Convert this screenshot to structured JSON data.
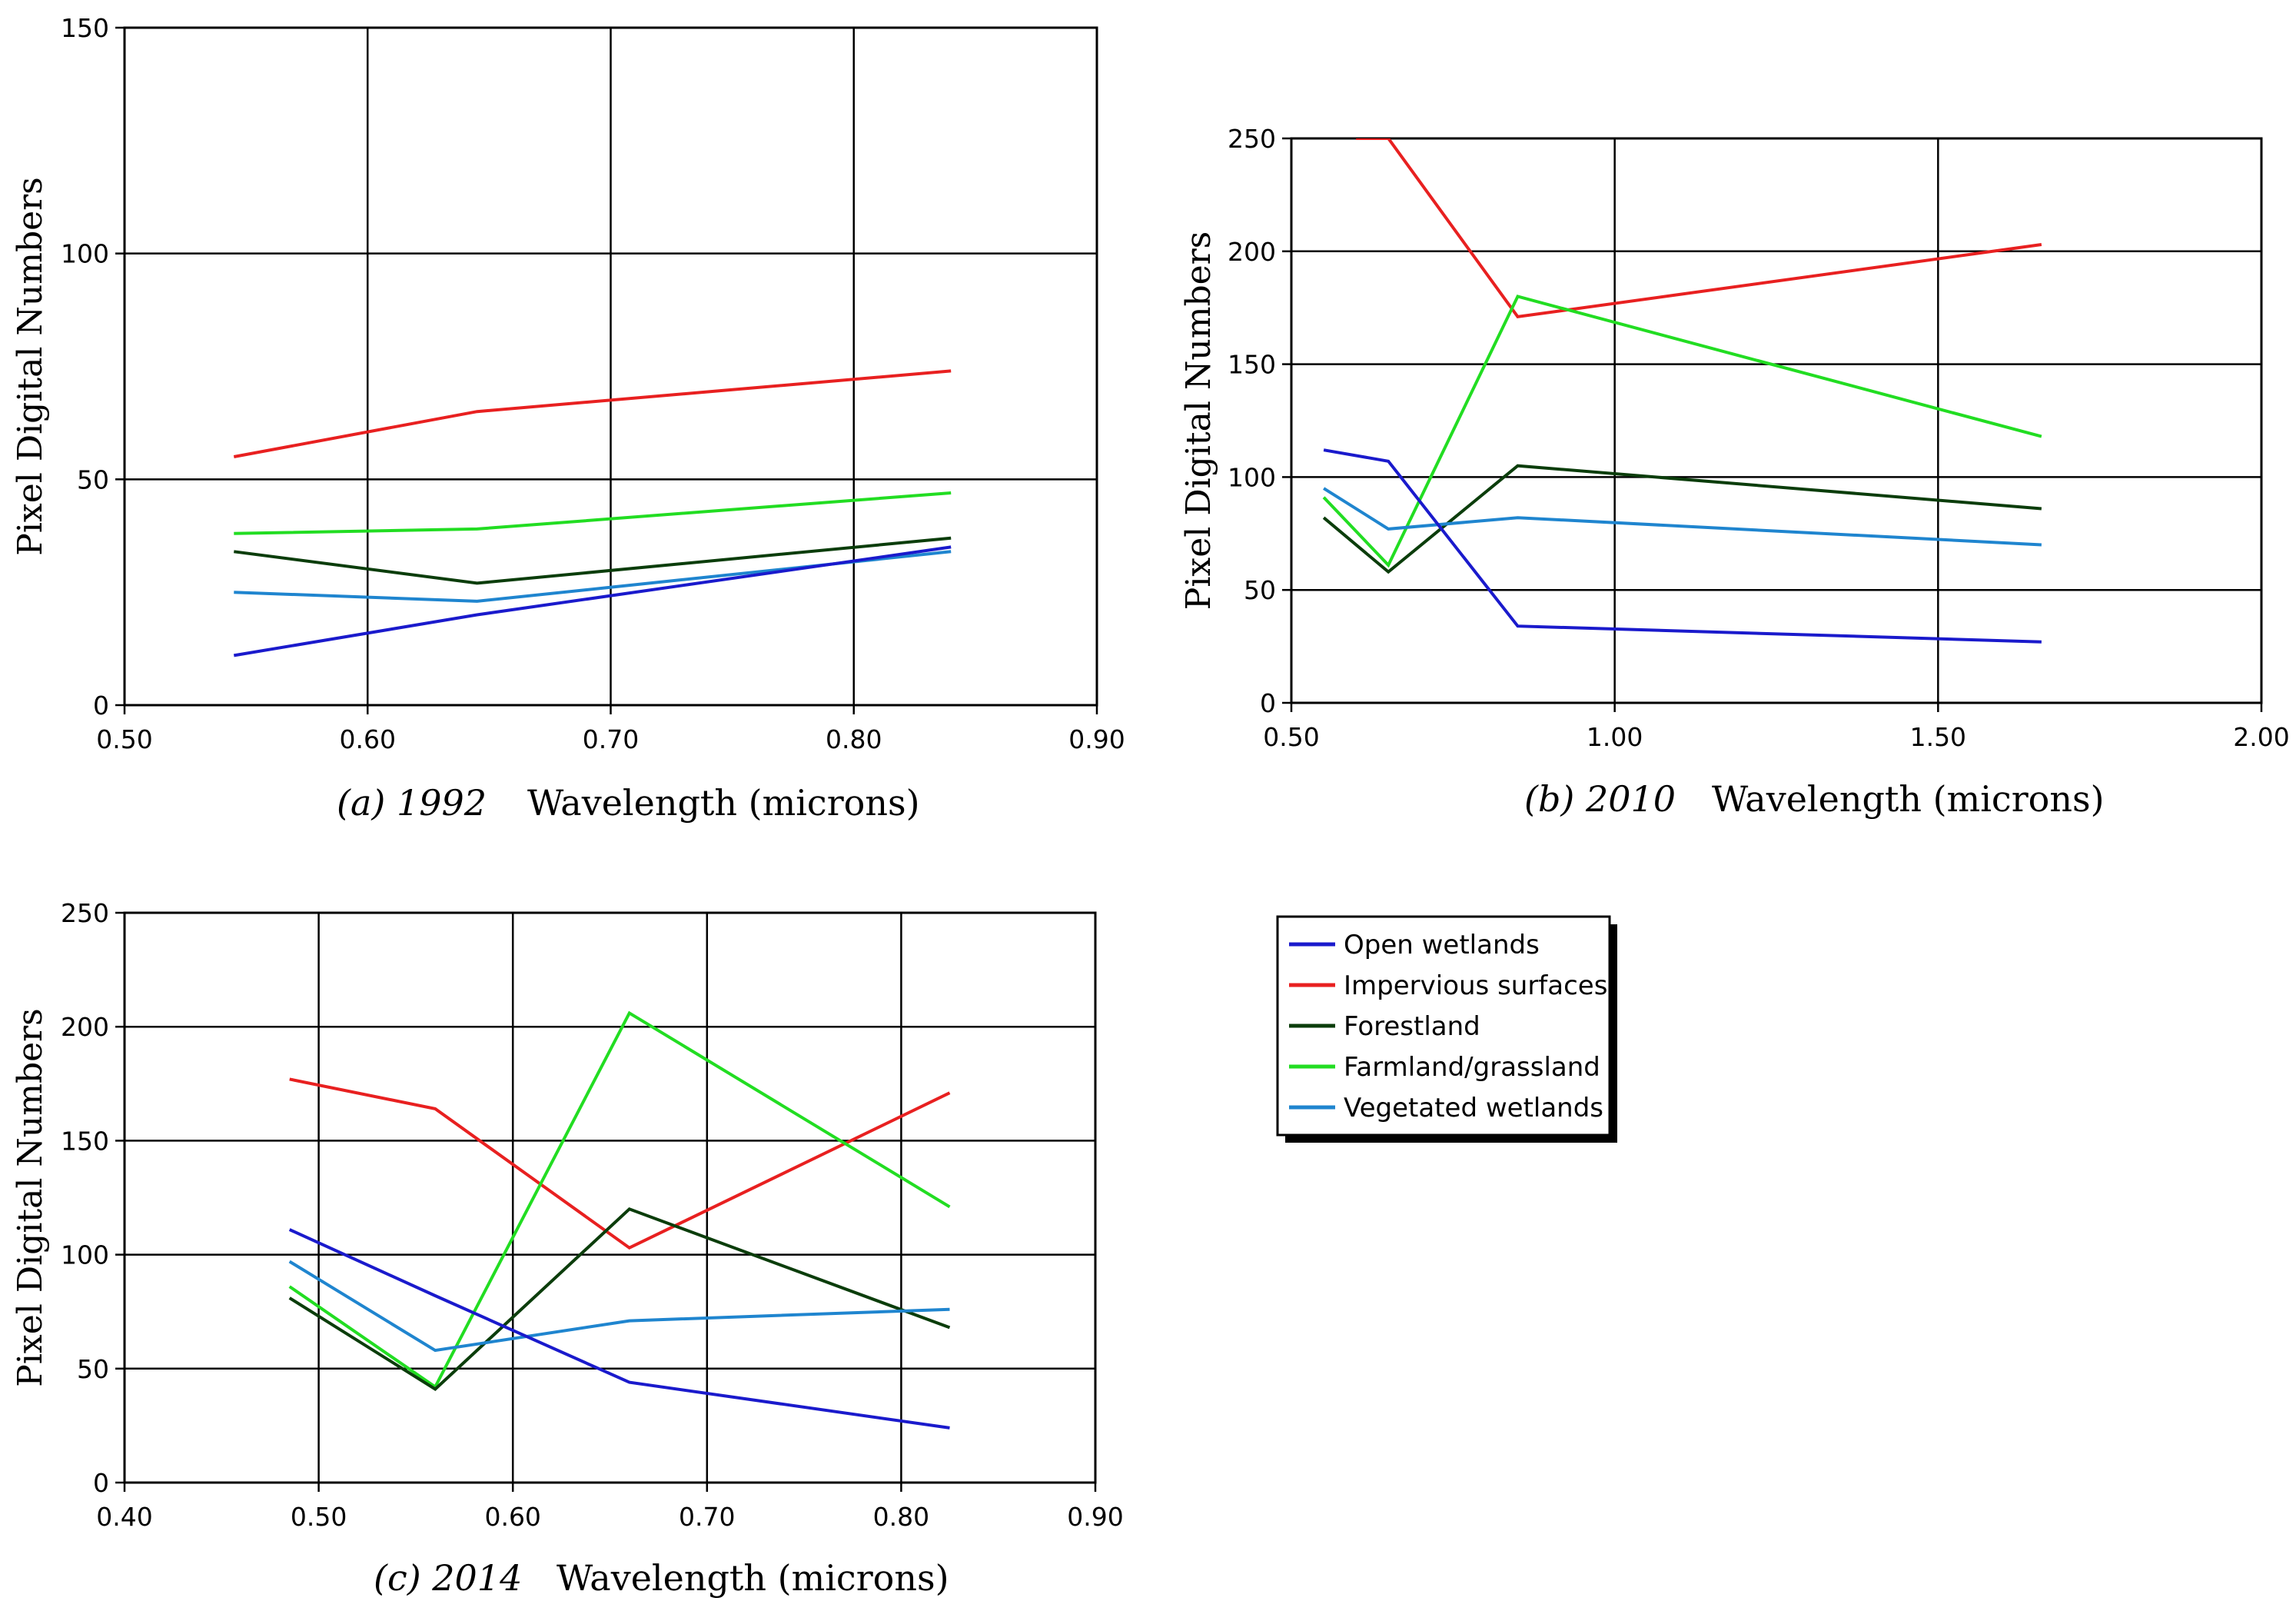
{
  "colors": {
    "open_wetlands": "#1a1acc",
    "impervious": "#e82020",
    "forest": "#0b3d0b",
    "farmland": "#22dd22",
    "veg_wetlands": "#1f85cf",
    "grid": "#000000"
  },
  "legend": {
    "items": [
      {
        "label": "Open wetlands",
        "color": "#1a1acc"
      },
      {
        "label": "Impervious surfaces",
        "color": "#e82020"
      },
      {
        "label": "Forestland",
        "color": "#0b3d0b"
      },
      {
        "label": "Farmland/grassland",
        "color": "#22dd22"
      },
      {
        "label": "Vegetated wetlands",
        "color": "#1f85cf"
      }
    ]
  },
  "chart_data": [
    {
      "id": "a",
      "type": "line",
      "caption_year": "(a) 1992",
      "xlabel": "Wavelength (microns)",
      "ylabel": "Pixel Digital Numbers",
      "xlim": [
        0.5,
        0.9
      ],
      "ylim": [
        0,
        150
      ],
      "xticks": [
        "0.50",
        "0.60",
        "0.70",
        "0.80",
        "0.90"
      ],
      "yticks": [
        "0",
        "50",
        "100",
        "150"
      ],
      "xtick_values": [
        0.5,
        0.6,
        0.7,
        0.8,
        0.9
      ],
      "ytick_values": [
        0,
        50,
        100,
        150
      ],
      "grid": true,
      "series": [
        {
          "name": "Impervious surfaces",
          "color": "#e82020",
          "x": [
            0.545,
            0.645,
            0.84
          ],
          "y": [
            55,
            65,
            74
          ]
        },
        {
          "name": "Farmland/grassland",
          "color": "#22dd22",
          "x": [
            0.545,
            0.645,
            0.84
          ],
          "y": [
            38,
            39,
            47
          ]
        },
        {
          "name": "Forestland",
          "color": "#0b3d0b",
          "x": [
            0.545,
            0.645,
            0.84
          ],
          "y": [
            34,
            27,
            37
          ]
        },
        {
          "name": "Vegetated wetlands",
          "color": "#1f85cf",
          "x": [
            0.545,
            0.645,
            0.84
          ],
          "y": [
            25,
            23,
            34
          ]
        },
        {
          "name": "Open wetlands",
          "color": "#1a1acc",
          "x": [
            0.545,
            0.645,
            0.84
          ],
          "y": [
            11,
            20,
            35
          ]
        }
      ]
    },
    {
      "id": "b",
      "type": "line",
      "caption_year": "(b) 2010",
      "xlabel": "Wavelength (microns)",
      "ylabel": "Pixel Digital Numbers",
      "xlim": [
        0.5,
        2.0
      ],
      "ylim": [
        0,
        250
      ],
      "xticks": [
        "0.50",
        "1.00",
        "1.50",
        "2.00"
      ],
      "yticks": [
        "0",
        "50",
        "100",
        "150",
        "200",
        "250"
      ],
      "xtick_values": [
        0.5,
        1.0,
        1.5,
        2.0
      ],
      "ytick_values": [
        0,
        50,
        100,
        150,
        200,
        250
      ],
      "grid": true,
      "series": [
        {
          "name": "Impervious surfaces",
          "color": "#e82020",
          "x": [
            0.6,
            0.65,
            0.85,
            1.66
          ],
          "y": [
            250,
            250,
            171,
            203
          ]
        },
        {
          "name": "Farmland/grassland",
          "color": "#22dd22",
          "x": [
            0.55,
            0.65,
            0.85,
            1.66
          ],
          "y": [
            91,
            61,
            180,
            118
          ]
        },
        {
          "name": "Forestland",
          "color": "#0b3d0b",
          "x": [
            0.55,
            0.65,
            0.85,
            1.66
          ],
          "y": [
            82,
            58,
            105,
            86
          ]
        },
        {
          "name": "Vegetated wetlands",
          "color": "#1f85cf",
          "x": [
            0.55,
            0.65,
            0.85,
            1.66
          ],
          "y": [
            95,
            77,
            82,
            70
          ]
        },
        {
          "name": "Open wetlands",
          "color": "#1a1acc",
          "x": [
            0.55,
            0.65,
            0.85,
            1.66
          ],
          "y": [
            112,
            107,
            34,
            27
          ]
        }
      ]
    },
    {
      "id": "c",
      "type": "line",
      "caption_year": "(c) 2014",
      "xlabel": "Wavelength (microns)",
      "ylabel": "Pixel Digital Numbers",
      "xlim": [
        0.4,
        0.9
      ],
      "ylim": [
        0,
        250
      ],
      "xticks": [
        "0.40",
        "0.50",
        "0.60",
        "0.70",
        "0.80",
        "0.90"
      ],
      "yticks": [
        "0",
        "50",
        "100",
        "150",
        "200",
        "250"
      ],
      "xtick_values": [
        0.4,
        0.5,
        0.6,
        0.7,
        0.8,
        0.9
      ],
      "ytick_values": [
        0,
        50,
        100,
        150,
        200,
        250
      ],
      "grid": true,
      "series": [
        {
          "name": "Impervious surfaces",
          "color": "#e82020",
          "x": [
            0.485,
            0.56,
            0.66,
            0.825
          ],
          "y": [
            177,
            164,
            103,
            171
          ]
        },
        {
          "name": "Farmland/grassland",
          "color": "#22dd22",
          "x": [
            0.485,
            0.56,
            0.66,
            0.825
          ],
          "y": [
            86,
            42,
            206,
            121
          ]
        },
        {
          "name": "Forestland",
          "color": "#0b3d0b",
          "x": [
            0.485,
            0.56,
            0.66,
            0.825
          ],
          "y": [
            81,
            41,
            120,
            68
          ]
        },
        {
          "name": "Vegetated wetlands",
          "color": "#1f85cf",
          "x": [
            0.485,
            0.56,
            0.66,
            0.825
          ],
          "y": [
            97,
            58,
            71,
            76
          ]
        },
        {
          "name": "Open wetlands",
          "color": "#1a1acc",
          "x": [
            0.485,
            0.56,
            0.66,
            0.825
          ],
          "y": [
            111,
            82,
            44,
            24
          ]
        }
      ]
    }
  ]
}
